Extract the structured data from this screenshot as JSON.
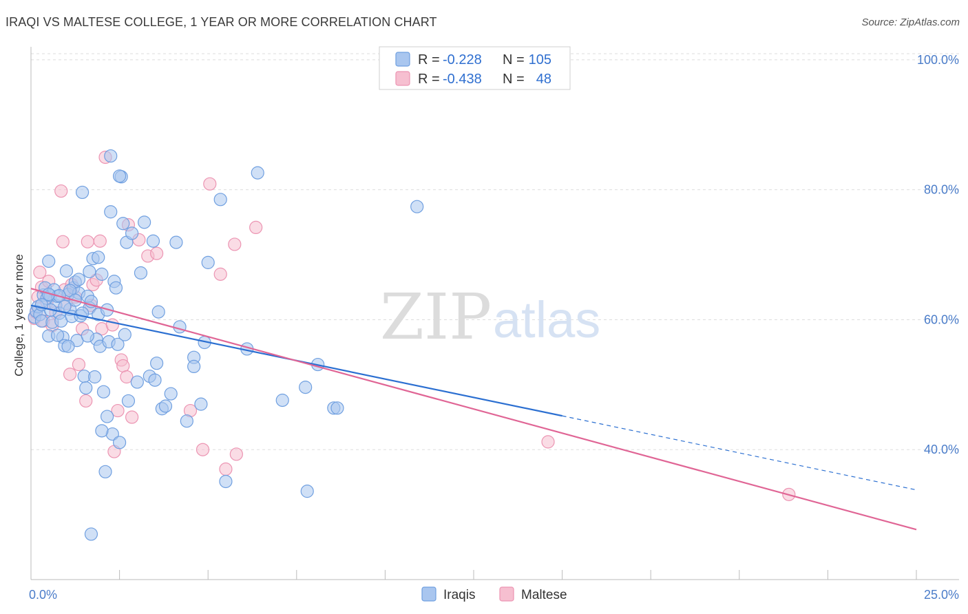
{
  "title": "IRAQI VS MALTESE COLLEGE, 1 YEAR OR MORE CORRELATION CHART",
  "source": "Source: ZipAtlas.com",
  "watermark": {
    "zip": "ZIP",
    "atlas": "atlas"
  },
  "colors": {
    "iraqis_fill": "#a9c6ef",
    "iraqis_stroke": "#6f9fe0",
    "iraqis_line": "#2b6fd1",
    "maltese_fill": "#f6bfd0",
    "maltese_stroke": "#ec94b2",
    "maltese_line": "#e06595",
    "grid": "#dddddd",
    "tick_text": "#4a7cc9"
  },
  "legend": {
    "rows": [
      {
        "r_label": "R = ",
        "r_value": "-0.228",
        "n_label": "N = ",
        "n_value": "105"
      },
      {
        "r_label": "R = ",
        "r_value": "-0.438",
        "n_label": "N = ",
        "n_value": "48"
      }
    ]
  },
  "chart_data": {
    "type": "scatter",
    "title": "IRAQI VS MALTESE COLLEGE, 1 YEAR OR MORE CORRELATION CHART",
    "xlabel": "",
    "ylabel": "College, 1 year or more",
    "xlim": [
      0,
      25
    ],
    "ylim": [
      20,
      102
    ],
    "x_tick_labels": [
      {
        "value": 0,
        "label": "0.0%"
      },
      {
        "value": 25,
        "label": "25.0%"
      }
    ],
    "y_tick_labels": [
      {
        "value": 100,
        "label": "100.0%"
      },
      {
        "value": 80,
        "label": "80.0%"
      },
      {
        "value": 60,
        "label": "60.0%"
      },
      {
        "value": 40,
        "label": "40.0%"
      }
    ],
    "grid": true,
    "legend_position": "top-center",
    "series": [
      {
        "name": "Iraqis",
        "regression": {
          "x": [
            0,
            15.0
          ],
          "y": [
            62.2,
            45.2
          ],
          "dashed_to": [
            25,
            33.8
          ]
        },
        "points": [
          [
            0.1,
            60.4
          ],
          [
            0.15,
            61.3
          ],
          [
            0.2,
            62.0
          ],
          [
            0.25,
            60.8
          ],
          [
            0.3,
            59.8
          ],
          [
            0.35,
            63.8
          ],
          [
            0.4,
            64.9
          ],
          [
            0.45,
            63.3
          ],
          [
            0.5,
            69.0
          ],
          [
            0.5,
            57.5
          ],
          [
            0.55,
            63.7
          ],
          [
            0.6,
            59.6
          ],
          [
            0.65,
            64.6
          ],
          [
            0.7,
            62.2
          ],
          [
            0.75,
            63.6
          ],
          [
            0.8,
            61.0
          ],
          [
            0.85,
            59.8
          ],
          [
            0.9,
            57.3
          ],
          [
            0.95,
            56.0
          ],
          [
            1.0,
            67.5
          ],
          [
            1.05,
            63.9
          ],
          [
            1.1,
            61.6
          ],
          [
            1.15,
            60.5
          ],
          [
            1.2,
            64.9
          ],
          [
            1.25,
            65.8
          ],
          [
            1.3,
            56.8
          ],
          [
            1.35,
            64.1
          ],
          [
            1.4,
            60.6
          ],
          [
            1.45,
            79.6
          ],
          [
            1.5,
            51.3
          ],
          [
            1.55,
            49.5
          ],
          [
            1.6,
            63.6
          ],
          [
            1.65,
            61.8
          ],
          [
            1.65,
            67.4
          ],
          [
            1.7,
            62.8
          ],
          [
            1.75,
            69.4
          ],
          [
            1.8,
            51.2
          ],
          [
            1.85,
            57.0
          ],
          [
            1.9,
            60.8
          ],
          [
            1.95,
            55.9
          ],
          [
            2.0,
            67.0
          ],
          [
            2.05,
            48.9
          ],
          [
            2.1,
            36.6
          ],
          [
            2.15,
            45.1
          ],
          [
            2.2,
            56.6
          ],
          [
            2.25,
            76.6
          ],
          [
            2.3,
            42.4
          ],
          [
            2.35,
            65.9
          ],
          [
            2.4,
            64.9
          ],
          [
            2.45,
            56.2
          ],
          [
            2.5,
            41.1
          ],
          [
            2.55,
            82.0
          ],
          [
            2.6,
            74.8
          ],
          [
            2.65,
            57.7
          ],
          [
            2.7,
            71.9
          ],
          [
            2.75,
            47.5
          ],
          [
            2.85,
            73.3
          ],
          [
            3.0,
            50.4
          ],
          [
            3.1,
            67.2
          ],
          [
            3.2,
            75.0
          ],
          [
            3.35,
            51.3
          ],
          [
            3.45,
            72.1
          ],
          [
            3.5,
            50.7
          ],
          [
            3.55,
            53.3
          ],
          [
            3.6,
            61.2
          ],
          [
            3.7,
            46.3
          ],
          [
            3.8,
            46.7
          ],
          [
            3.95,
            48.6
          ],
          [
            4.1,
            71.9
          ],
          [
            4.2,
            58.9
          ],
          [
            4.4,
            44.4
          ],
          [
            4.6,
            54.2
          ],
          [
            4.6,
            52.8
          ],
          [
            4.8,
            47.0
          ],
          [
            4.9,
            56.5
          ],
          [
            5.0,
            68.8
          ],
          [
            5.35,
            78.5
          ],
          [
            5.5,
            35.1
          ],
          [
            6.1,
            55.5
          ],
          [
            6.4,
            82.6
          ],
          [
            7.1,
            47.6
          ],
          [
            7.75,
            49.6
          ],
          [
            7.8,
            33.6
          ],
          [
            8.1,
            53.1
          ],
          [
            8.55,
            46.4
          ],
          [
            8.65,
            46.4
          ],
          [
            10.9,
            77.4
          ],
          [
            2.25,
            85.2
          ],
          [
            2.0,
            42.9
          ],
          [
            1.7,
            27.0
          ],
          [
            2.5,
            82.1
          ],
          [
            1.1,
            64.5
          ],
          [
            0.55,
            61.5
          ],
          [
            1.25,
            63.0
          ],
          [
            1.35,
            66.2
          ],
          [
            0.75,
            57.6
          ],
          [
            0.95,
            62.0
          ],
          [
            1.45,
            61.0
          ],
          [
            2.15,
            61.5
          ],
          [
            1.05,
            55.9
          ],
          [
            0.3,
            62.3
          ],
          [
            0.8,
            63.7
          ],
          [
            1.6,
            57.5
          ],
          [
            1.9,
            69.6
          ],
          [
            0.5,
            63.9
          ]
        ]
      },
      {
        "name": "Maltese",
        "regression": {
          "x": [
            0,
            25
          ],
          "y": [
            64.8,
            27.7
          ]
        },
        "points": [
          [
            0.1,
            60.2
          ],
          [
            0.15,
            61.1
          ],
          [
            0.2,
            63.5
          ],
          [
            0.25,
            67.3
          ],
          [
            0.3,
            65.0
          ],
          [
            0.35,
            59.8
          ],
          [
            0.45,
            62.7
          ],
          [
            0.5,
            65.9
          ],
          [
            0.6,
            59.1
          ],
          [
            0.7,
            61.1
          ],
          [
            0.85,
            79.8
          ],
          [
            0.9,
            72.0
          ],
          [
            0.95,
            64.6
          ],
          [
            1.0,
            62.5
          ],
          [
            1.1,
            51.6
          ],
          [
            1.15,
            65.4
          ],
          [
            1.25,
            63.5
          ],
          [
            1.35,
            53.1
          ],
          [
            1.45,
            58.6
          ],
          [
            1.55,
            47.5
          ],
          [
            1.6,
            72.0
          ],
          [
            1.7,
            62.2
          ],
          [
            1.75,
            65.4
          ],
          [
            1.85,
            66.1
          ],
          [
            1.95,
            72.1
          ],
          [
            2.0,
            58.6
          ],
          [
            2.1,
            85.0
          ],
          [
            2.3,
            59.2
          ],
          [
            2.35,
            39.7
          ],
          [
            2.45,
            46.0
          ],
          [
            2.55,
            53.8
          ],
          [
            2.6,
            52.9
          ],
          [
            2.7,
            51.2
          ],
          [
            2.75,
            74.6
          ],
          [
            2.85,
            45.0
          ],
          [
            3.05,
            72.3
          ],
          [
            3.3,
            69.8
          ],
          [
            3.55,
            70.2
          ],
          [
            4.5,
            46.0
          ],
          [
            4.85,
            40.0
          ],
          [
            5.05,
            80.9
          ],
          [
            5.35,
            67.0
          ],
          [
            5.5,
            37.0
          ],
          [
            5.75,
            71.6
          ],
          [
            5.8,
            39.3
          ],
          [
            6.35,
            74.2
          ],
          [
            14.6,
            41.2
          ],
          [
            21.4,
            33.1
          ]
        ]
      }
    ]
  },
  "bottom_legend": [
    {
      "label": "Iraqis"
    },
    {
      "label": "Maltese"
    }
  ]
}
